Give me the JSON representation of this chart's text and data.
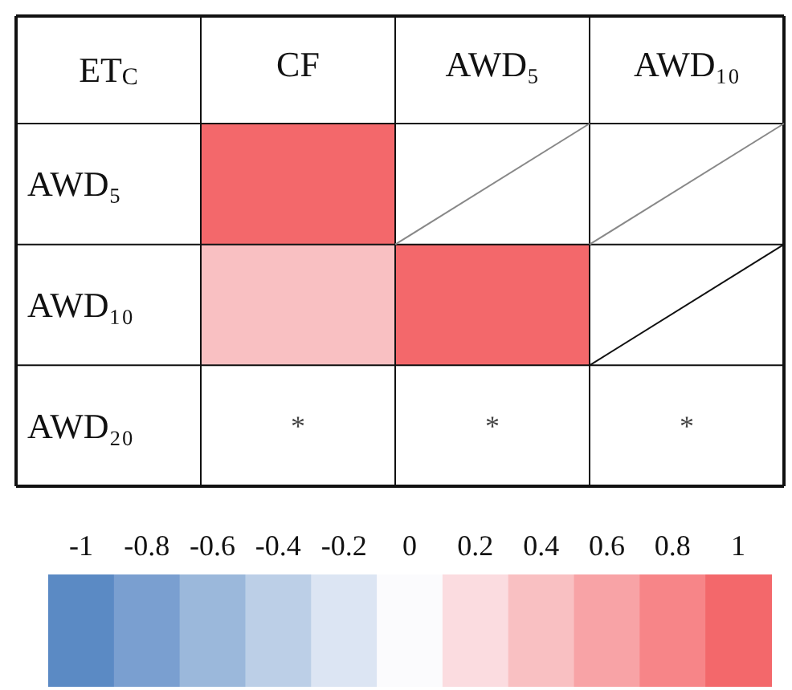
{
  "chart_data": {
    "type": "heatmap",
    "title": "ET$_{C}$",
    "categories": [
      "CF",
      "AWD₅",
      "AWD₁₀"
    ],
    "y_categories": [
      "AWD₅",
      "AWD₁₀",
      "AWD₂₀"
    ],
    "cells": [
      [
        1,
        null,
        null
      ],
      [
        0.4,
        1,
        null
      ],
      [
        null,
        null,
        null
      ]
    ],
    "cell_labels": [
      [
        null,
        null,
        null
      ],
      [
        null,
        null,
        null
      ],
      [
        "*",
        "*",
        "*"
      ]
    ],
    "clim": [
      -1.1,
      1.1
    ],
    "cticks": [
      -1,
      -0.8,
      -0.6,
      -0.4,
      -0.2,
      0,
      0.2,
      0.4,
      0.6,
      0.8,
      1
    ],
    "colors": [
      "#5b8ac4",
      "#7a9fd0",
      "#9bb8db",
      "#bccfe7",
      "#dce5f3",
      "#fbfbfd",
      "#fbdce0",
      "#f9c0c2",
      "#f8a3a6",
      "#f78588",
      "#f3686b"
    ]
  }
}
